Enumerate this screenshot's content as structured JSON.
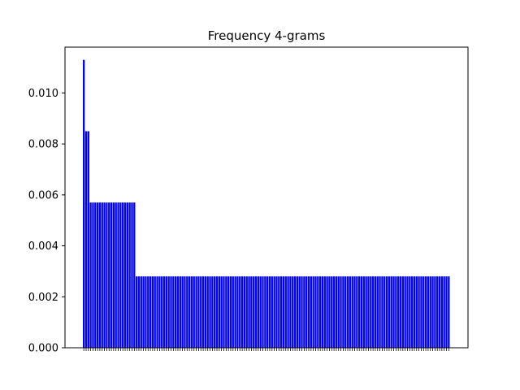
{
  "chart_data": {
    "type": "bar",
    "title": "Frequency 4-grams",
    "xlabel": "",
    "ylabel": "",
    "bar_color": "#0000ff",
    "grid": false,
    "ylim": [
      0,
      0.0118
    ],
    "yticks": [
      "0.000",
      "0.002",
      "0.004",
      "0.006",
      "0.008",
      "0.010"
    ],
    "ytick_values": [
      0.0,
      0.002,
      0.004,
      0.006,
      0.008,
      0.01
    ],
    "category_count": 160,
    "categories_note_values": [],
    "values": [
      0.0113,
      0.0085,
      0.0085,
      0.0057,
      0.0057,
      0.0057,
      0.0057,
      0.0057,
      0.0057,
      0.0057,
      0.0057,
      0.0057,
      0.0057,
      0.0057,
      0.0057,
      0.0057,
      0.0057,
      0.0057,
      0.0057,
      0.0057,
      0.0057,
      0.0057,
      0.0057,
      0.0028,
      0.0028,
      0.0028,
      0.0028,
      0.0028,
      0.0028,
      0.0028,
      0.0028,
      0.0028,
      0.0028,
      0.0028,
      0.0028,
      0.0028,
      0.0028,
      0.0028,
      0.0028,
      0.0028,
      0.0028,
      0.0028,
      0.0028,
      0.0028,
      0.0028,
      0.0028,
      0.0028,
      0.0028,
      0.0028,
      0.0028,
      0.0028,
      0.0028,
      0.0028,
      0.0028,
      0.0028,
      0.0028,
      0.0028,
      0.0028,
      0.0028,
      0.0028,
      0.0028,
      0.0028,
      0.0028,
      0.0028,
      0.0028,
      0.0028,
      0.0028,
      0.0028,
      0.0028,
      0.0028,
      0.0028,
      0.0028,
      0.0028,
      0.0028,
      0.0028,
      0.0028,
      0.0028,
      0.0028,
      0.0028,
      0.0028,
      0.0028,
      0.0028,
      0.0028,
      0.0028,
      0.0028,
      0.0028,
      0.0028,
      0.0028,
      0.0028,
      0.0028,
      0.0028,
      0.0028,
      0.0028,
      0.0028,
      0.0028,
      0.0028,
      0.0028,
      0.0028,
      0.0028,
      0.0028,
      0.0028,
      0.0028,
      0.0028,
      0.0028,
      0.0028,
      0.0028,
      0.0028,
      0.0028,
      0.0028,
      0.0028,
      0.0028,
      0.0028,
      0.0028,
      0.0028,
      0.0028,
      0.0028,
      0.0028,
      0.0028,
      0.0028,
      0.0028,
      0.0028,
      0.0028,
      0.0028,
      0.0028,
      0.0028,
      0.0028,
      0.0028,
      0.0028,
      0.0028,
      0.0028,
      0.0028,
      0.0028,
      0.0028,
      0.0028,
      0.0028,
      0.0028,
      0.0028,
      0.0028,
      0.0028,
      0.0028,
      0.0028,
      0.0028,
      0.0028,
      0.0028,
      0.0028,
      0.0028,
      0.0028,
      0.0028,
      0.0028,
      0.0028,
      0.0028,
      0.0028,
      0.0028,
      0.0028,
      0.0028,
      0.0028,
      0.0028,
      0.0028,
      0.0028,
      0.0028
    ]
  }
}
